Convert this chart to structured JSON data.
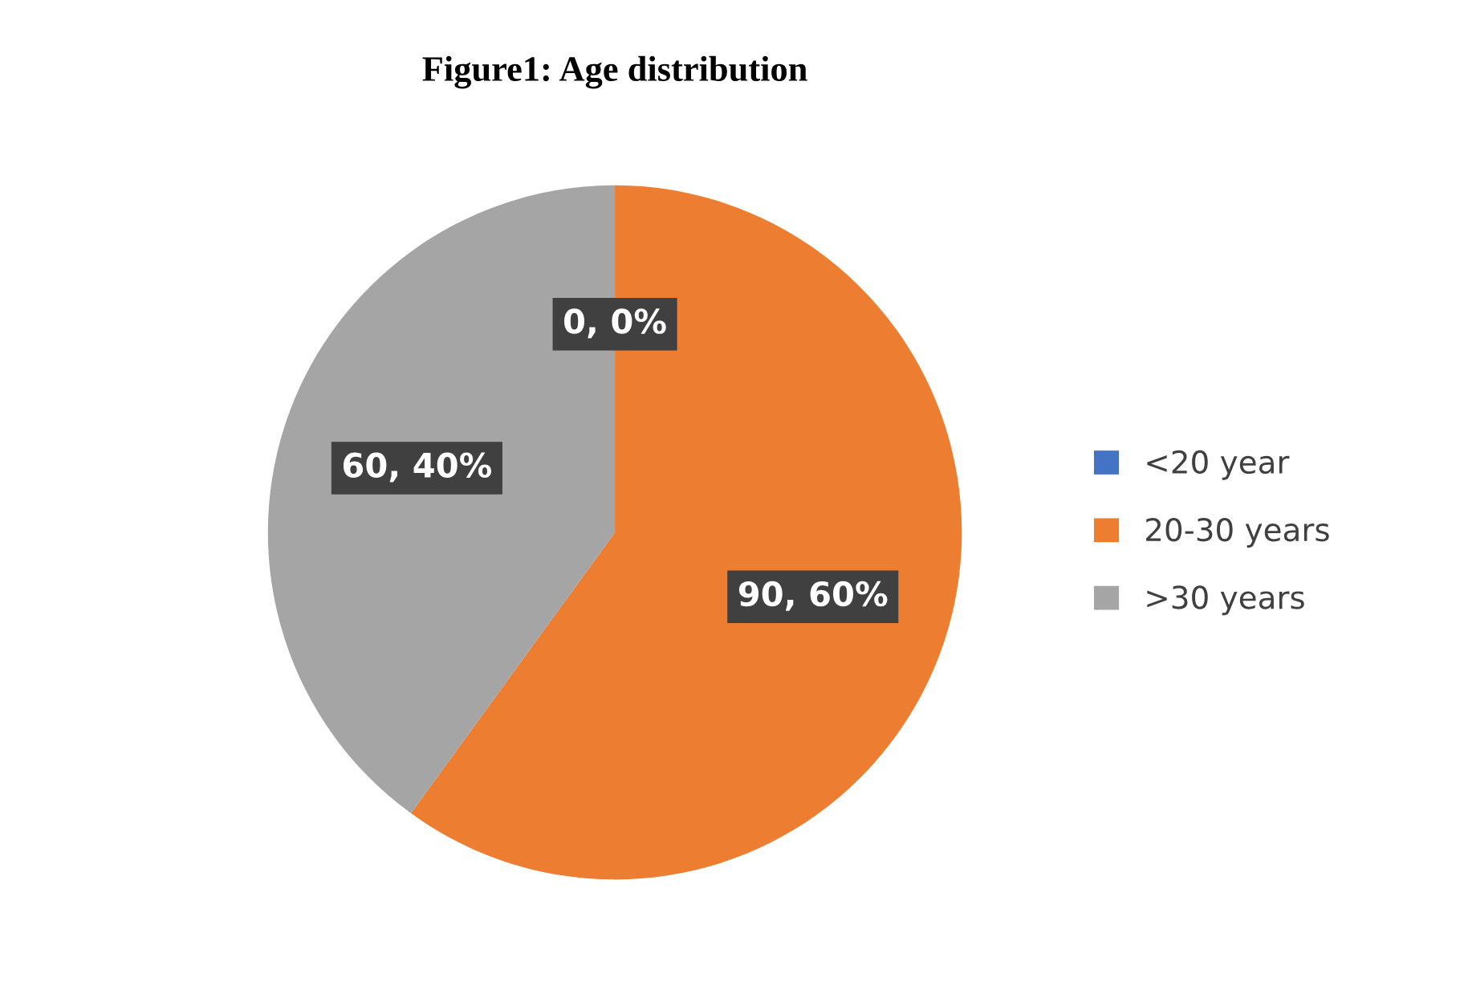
{
  "chart_data": {
    "type": "pie",
    "title": "Figure1: Age distribution",
    "categories": [
      "<20 year",
      "20-30 years",
      ">30 years"
    ],
    "values": [
      0,
      90,
      60
    ],
    "colors": [
      "#4472c4",
      "#ed7d31",
      "#a5a5a5"
    ],
    "value_labels": [
      "0, 0%",
      "90, 60%",
      "60, 40%"
    ],
    "legend": "right"
  }
}
